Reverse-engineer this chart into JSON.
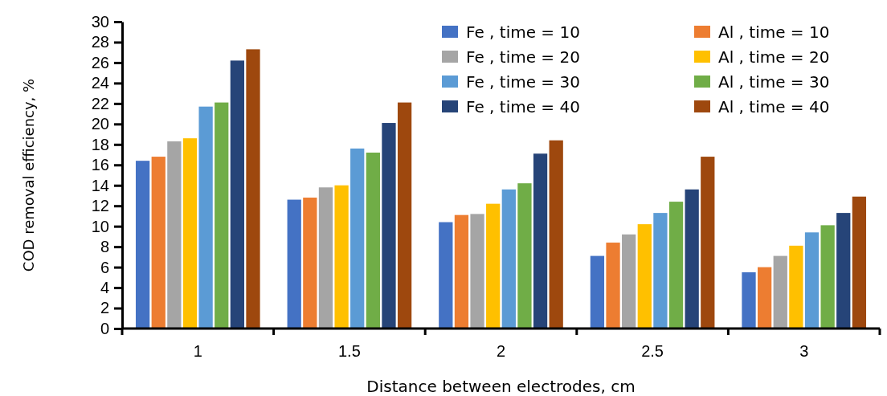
{
  "chart_data": {
    "type": "bar",
    "xlabel": "Distance between electrodes, cm",
    "ylabel": "COD removal efficiency, %",
    "categories": [
      "1",
      "1.5",
      "2",
      "2.5",
      "3"
    ],
    "series": [
      {
        "name": "Fe , time = 10",
        "color": "#4472c4",
        "values": [
          16.4,
          12.6,
          10.4,
          7.1,
          5.5
        ]
      },
      {
        "name": "Al , time = 10",
        "color": "#ed7d31",
        "values": [
          16.8,
          12.8,
          11.1,
          8.4,
          6.0
        ]
      },
      {
        "name": "Fe , time = 20",
        "color": "#a5a5a5",
        "values": [
          18.3,
          13.8,
          11.2,
          9.2,
          7.1
        ]
      },
      {
        "name": "Al , time = 20",
        "color": "#ffc000",
        "values": [
          18.6,
          14.0,
          12.2,
          10.2,
          8.1
        ]
      },
      {
        "name": "Fe , time = 30",
        "color": "#5b9bd5",
        "values": [
          21.7,
          17.6,
          13.6,
          11.3,
          9.4
        ]
      },
      {
        "name": "Al , time = 30",
        "color": "#70ad47",
        "values": [
          22.1,
          17.2,
          14.2,
          12.4,
          10.1
        ]
      },
      {
        "name": "Fe , time = 40",
        "color": "#264478",
        "values": [
          26.2,
          20.1,
          17.1,
          13.6,
          11.3
        ]
      },
      {
        "name": "Al , time = 40",
        "color": "#9e480e",
        "values": [
          27.3,
          22.1,
          18.4,
          16.8,
          12.9
        ]
      }
    ],
    "ylim": [
      0,
      30
    ],
    "yticks": [
      0,
      2,
      4,
      6,
      8,
      10,
      12,
      14,
      16,
      18,
      20,
      22,
      24,
      26,
      28,
      30
    ],
    "grid": false,
    "legend": "top right"
  }
}
